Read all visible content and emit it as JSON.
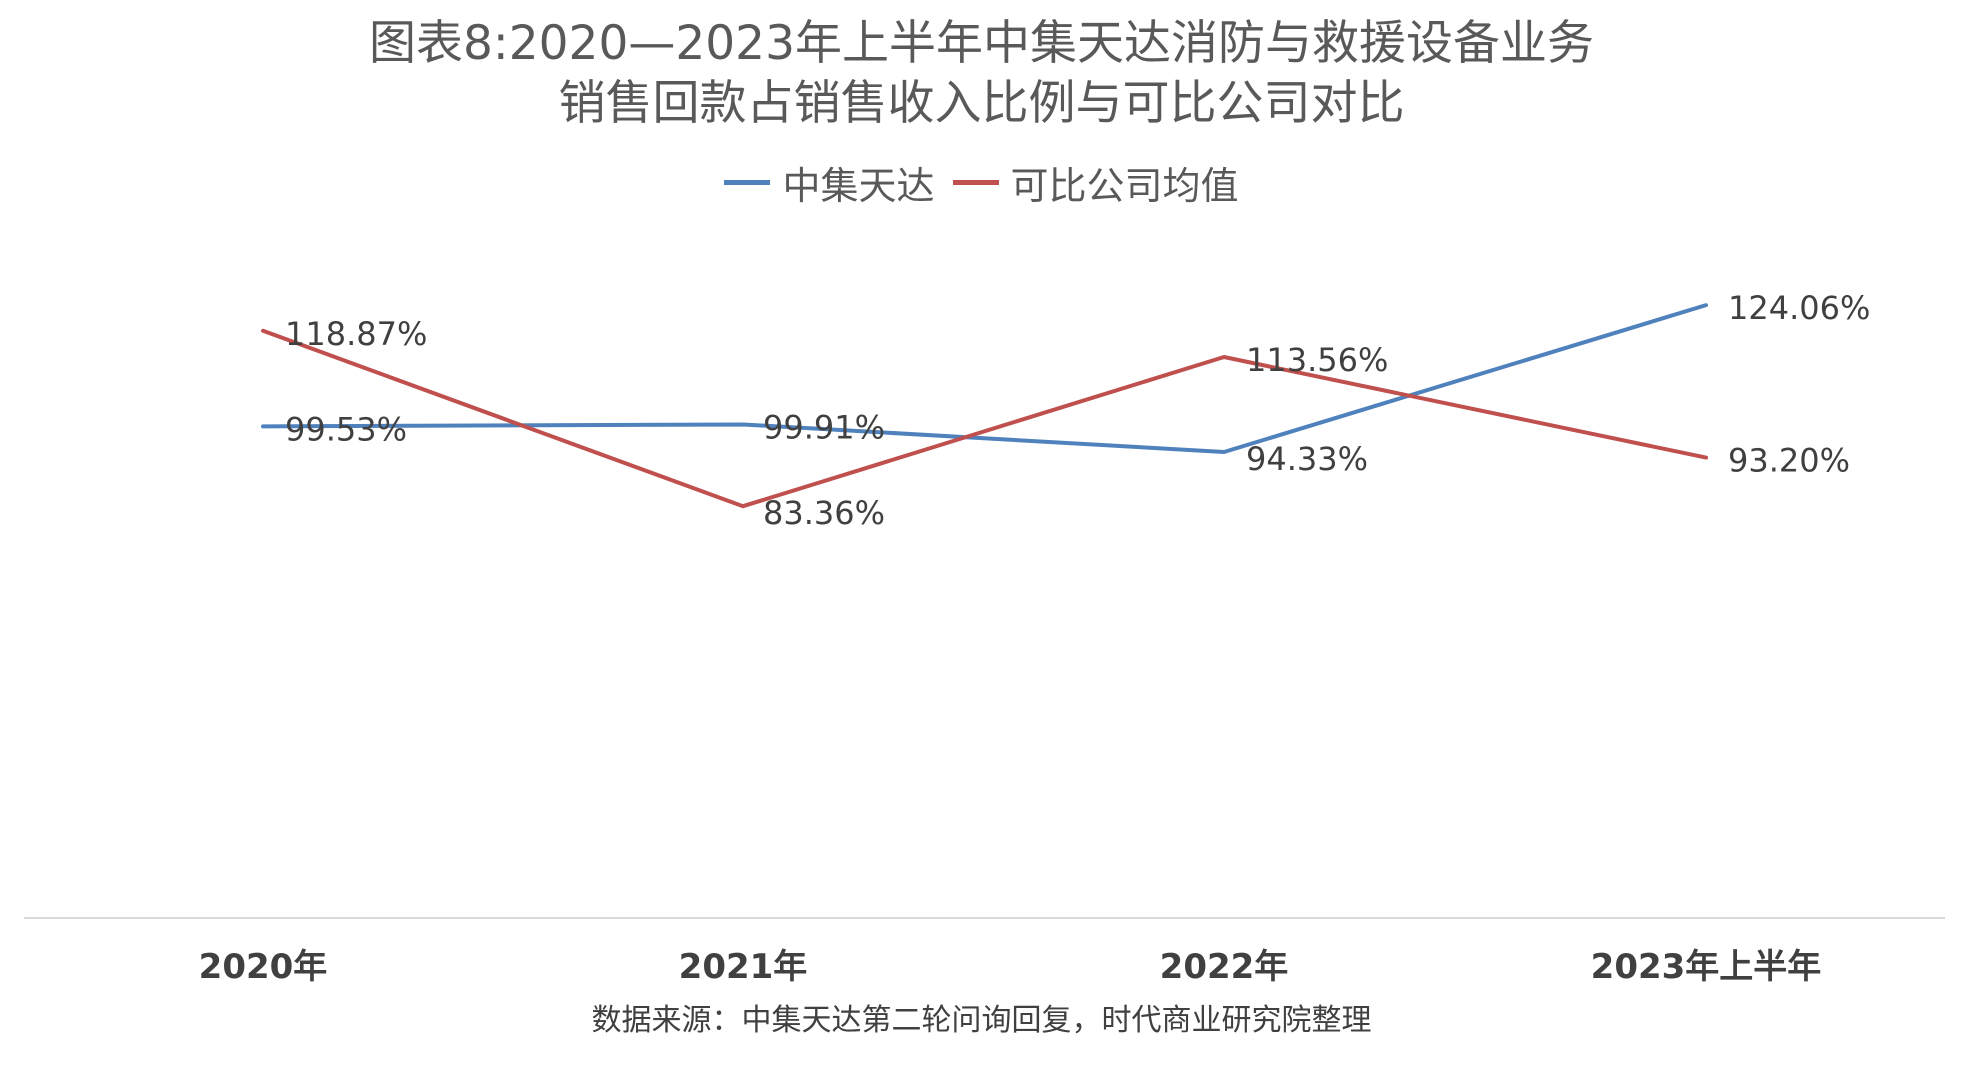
{
  "title": {
    "line1": "图表8:2020—2023年上半年中集天达消防与救援设备业务",
    "line2": "销售回款占销售收入比例与可比公司对比"
  },
  "source_note": "数据来源：中集天达第二轮问询回复，时代商业研究院整理",
  "colors": {
    "series_1": "#4F81BD",
    "series_2": "#C0504D",
    "axis": "#D9D9D9",
    "text": "#404040"
  },
  "chart_data": {
    "type": "line",
    "title": "图表8:2020—2023年上半年中集天达消防与救援设备业务销售回款占销售收入比例与可比公司对比",
    "categories": [
      "2020年",
      "2021年",
      "2022年",
      "2023年上半年"
    ],
    "series": [
      {
        "name": "中集天达",
        "values": [
          99.53,
          99.91,
          94.33,
          124.06
        ],
        "labels": [
          "99.53%",
          "99.91%",
          "94.33%",
          "124.06%"
        ],
        "color": "#4F81BD"
      },
      {
        "name": "可比公司均值",
        "values": [
          118.87,
          83.36,
          113.56,
          93.2
        ],
        "labels": [
          "118.87%",
          "83.36%",
          "113.56%",
          "93.20%"
        ],
        "color": "#C0504D"
      }
    ],
    "xlabel": "",
    "ylabel": "",
    "ylim": [
      0,
      140
    ],
    "grid": false,
    "y_axis_visible": false,
    "legend_position": "top"
  }
}
